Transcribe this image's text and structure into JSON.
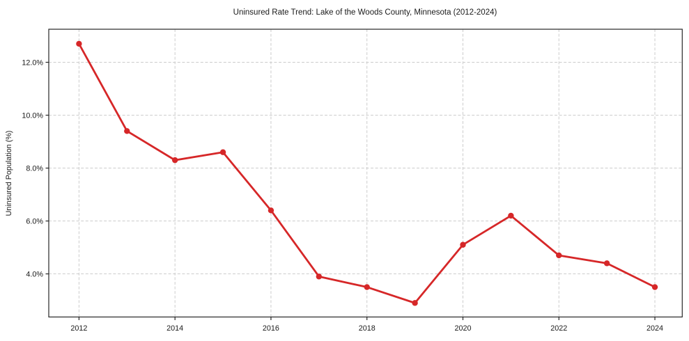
{
  "chart_data": {
    "type": "line",
    "title": "Uninsured Rate Trend: Lake of the Woods County, Minnesota (2012-2024)",
    "xlabel": "",
    "ylabel": "Uninsured Population (%)",
    "series_name": "Uninsured rate",
    "x": [
      2012,
      2013,
      2014,
      2015,
      2016,
      2017,
      2018,
      2019,
      2020,
      2021,
      2022,
      2023,
      2024
    ],
    "values": [
      12.7,
      9.4,
      8.3,
      8.6,
      6.4,
      3.9,
      3.5,
      2.9,
      5.1,
      6.2,
      4.7,
      4.4,
      3.5
    ],
    "x_ticks": [
      {
        "value": 2012,
        "label": "2012"
      },
      {
        "value": 2014,
        "label": "2014"
      },
      {
        "value": 2016,
        "label": "2016"
      },
      {
        "value": 2018,
        "label": "2018"
      },
      {
        "value": 2020,
        "label": "2020"
      },
      {
        "value": 2022,
        "label": "2022"
      },
      {
        "value": 2024,
        "label": "2024"
      }
    ],
    "y_ticks": [
      {
        "value": 4.0,
        "label": "4.0%"
      },
      {
        "value": 6.0,
        "label": "6.0%"
      },
      {
        "value": 8.0,
        "label": "8.0%"
      },
      {
        "value": 10.0,
        "label": "10.0%"
      },
      {
        "value": 12.0,
        "label": "12.0%"
      }
    ],
    "xlim": [
      2011.37,
      2024.57
    ],
    "ylim": [
      2.37,
      13.25
    ],
    "grid": true,
    "legend": "none",
    "line_color": "#d62728",
    "marker_color": "#d62728",
    "grid_color": "#cccccc",
    "spine_color": "#262626",
    "text_color": "#1a1a1a"
  }
}
